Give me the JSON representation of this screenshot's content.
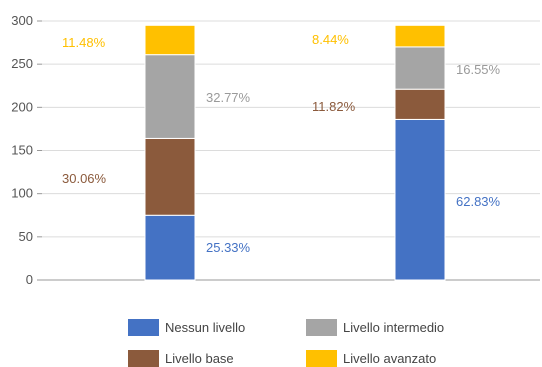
{
  "chart_data": {
    "type": "bar",
    "stacked": true,
    "categories": [
      "",
      ""
    ],
    "ylim": [
      0,
      300
    ],
    "yticks": [
      0,
      50,
      100,
      150,
      200,
      250,
      300
    ],
    "grid": true,
    "legend_position": "bottom",
    "series": [
      {
        "name": "Nessun livello",
        "color": "#4472C4",
        "values": [
          75,
          186
        ],
        "labels": [
          "25.33%",
          "62.83%"
        ]
      },
      {
        "name": "Livello base",
        "color": "#8B5A3C",
        "values": [
          89,
          35
        ],
        "labels": [
          "30.06%",
          "11.82%"
        ]
      },
      {
        "name": "Livello intermedio",
        "color": "#A5A5A5",
        "values": [
          97,
          49
        ],
        "labels": [
          "32.77%",
          "16.55%"
        ]
      },
      {
        "name": "Livello avanzato",
        "color": "#FFC000",
        "values": [
          34,
          25
        ],
        "labels": [
          "11.48%",
          "8.44%"
        ]
      }
    ]
  }
}
